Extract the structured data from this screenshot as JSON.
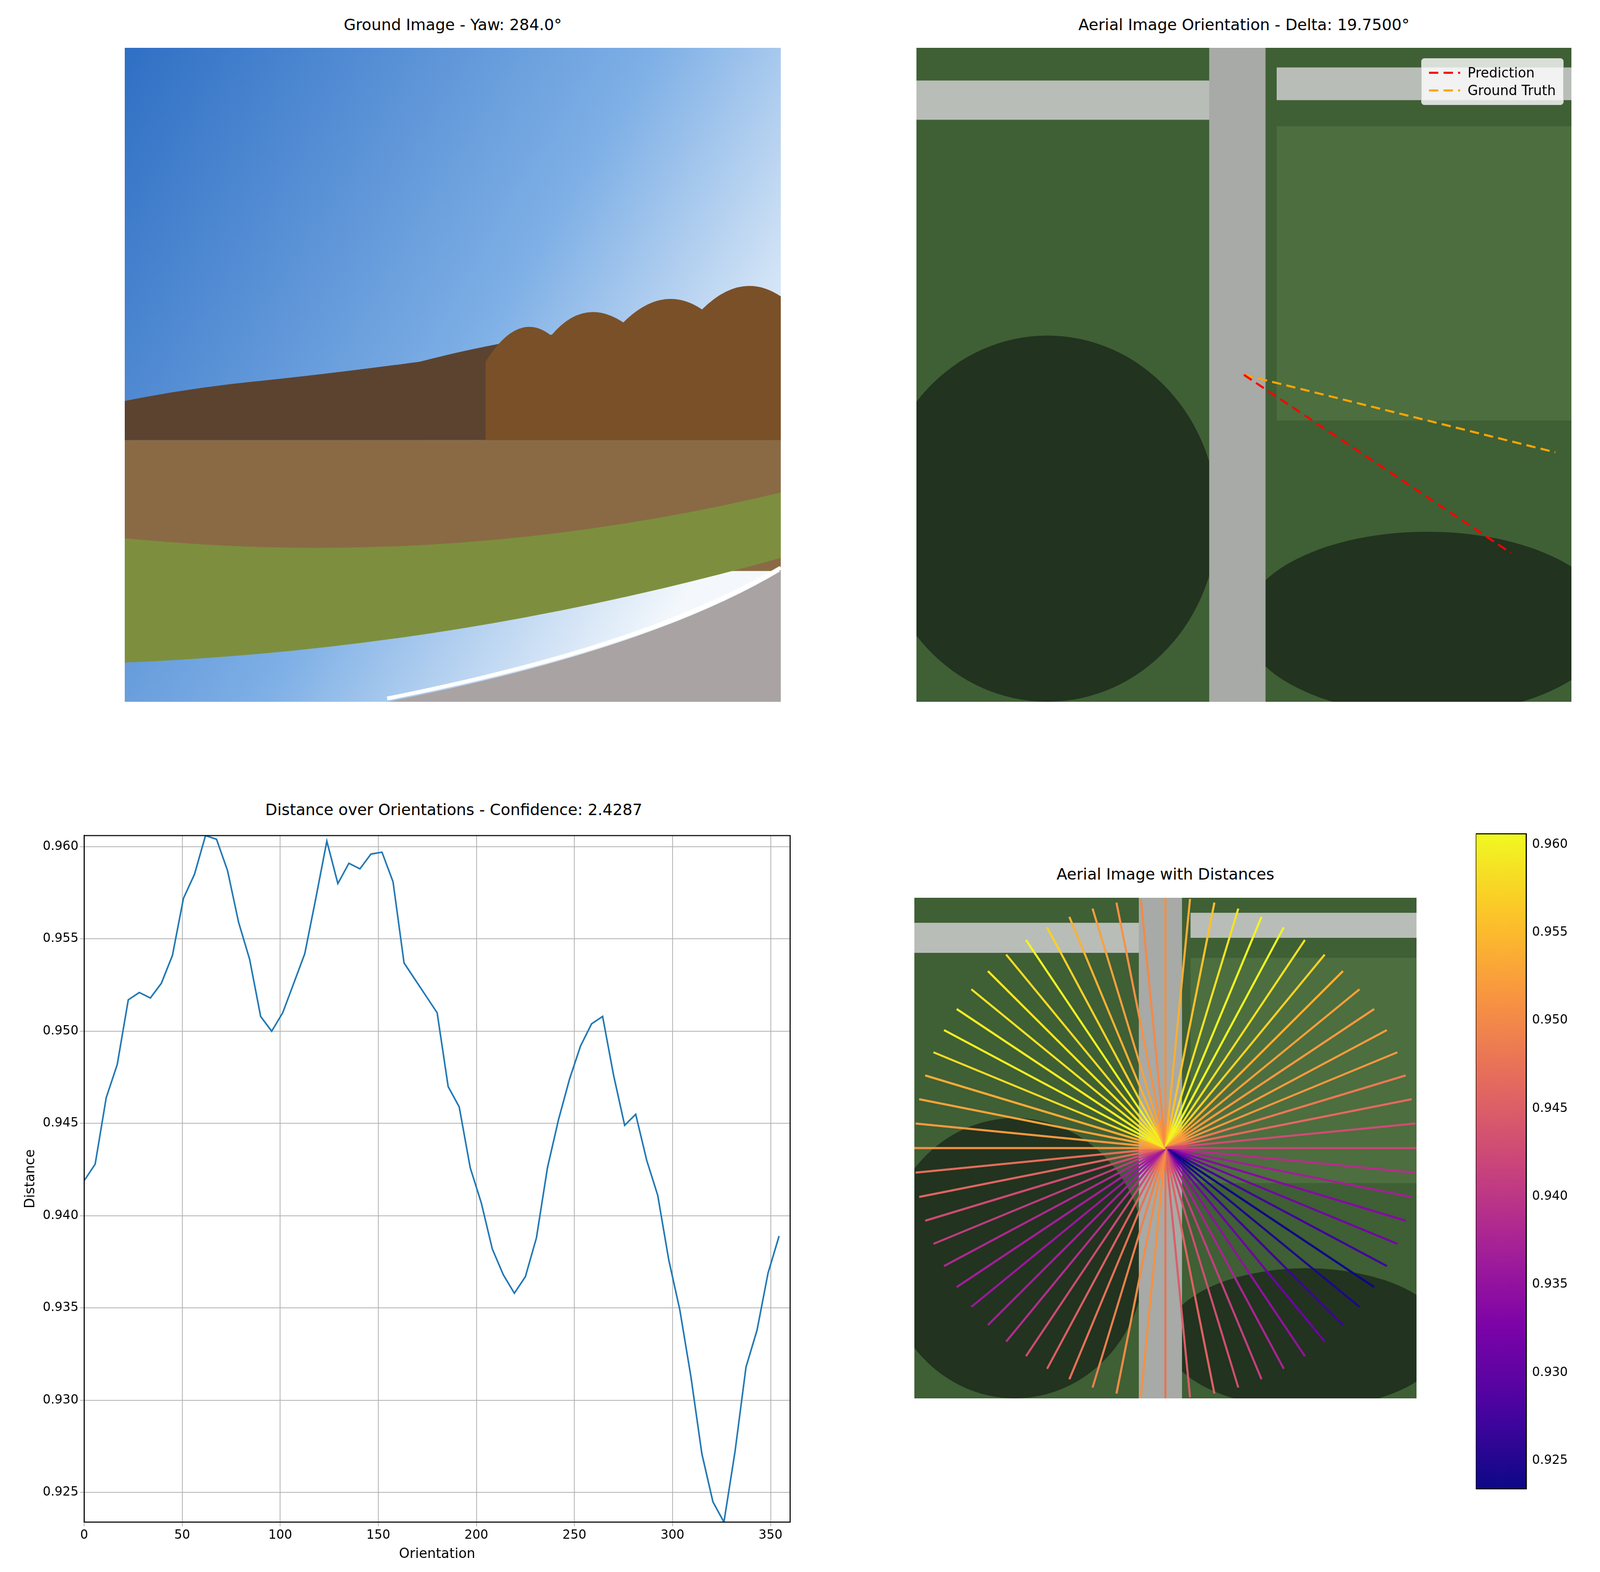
{
  "chart_data": [
    {
      "type": "image",
      "title": "Ground Image - Yaw: 284.0°"
    },
    {
      "type": "orientation",
      "title": "Aerial Image Orientation - Delta: 19.7500°",
      "legend": "upper right",
      "series": [
        {
          "name": "Prediction",
          "color": "#ff0000",
          "line_style": "dashed",
          "values": [
            326.25
          ]
        },
        {
          "name": "Ground Truth",
          "color": "#ffa500",
          "line_style": "dashed",
          "values": [
            346.0
          ]
        }
      ]
    },
    {
      "type": "line",
      "title": "Distance over Orientations - Confidence: 2.4287",
      "x_label": "Orientation",
      "y_label": "Distance",
      "color": "#1f77b4",
      "grid": true,
      "xlim": [
        0,
        360
      ],
      "xticks": [
        0,
        50,
        100,
        150,
        200,
        250,
        300,
        350
      ],
      "ylim": [
        0.9234,
        0.9606
      ],
      "yticks": [
        0.925,
        {
          "value": 0.93,
          "label": "0.930"
        },
        0.935,
        {
          "value": 0.94,
          "label": "0.940"
        },
        0.945,
        {
          "value": 0.95,
          "label": "0.950"
        },
        0.955,
        {
          "value": 0.96,
          "label": "0.960"
        }
      ],
      "x": [
        0,
        5.625,
        11.25,
        16.875,
        22.5,
        28.125,
        33.75,
        39.375,
        45,
        50.625,
        56.25,
        61.875,
        67.5,
        73.125,
        78.75,
        84.375,
        90,
        95.625,
        101.25,
        106.875,
        112.5,
        118.125,
        123.75,
        129.375,
        135,
        140.625,
        146.25,
        151.875,
        157.5,
        163.125,
        168.75,
        174.375,
        180,
        185.625,
        191.25,
        196.875,
        202.5,
        208.125,
        213.75,
        219.375,
        225,
        230.625,
        236.25,
        241.875,
        247.5,
        253.125,
        258.75,
        264.375,
        270,
        275.625,
        281.25,
        286.875,
        292.5,
        298.125,
        303.75,
        309.375,
        315,
        320.625,
        326.25,
        331.875,
        337.5,
        343.125,
        348.75,
        354.375
      ],
      "values": [
        0.9419,
        0.9428,
        0.9464,
        0.9482,
        0.9517,
        0.9521,
        0.9518,
        0.9526,
        0.9541,
        0.9572,
        0.9585,
        0.9606,
        0.9604,
        0.9587,
        0.9559,
        0.9539,
        0.9508,
        0.95,
        0.951,
        0.9526,
        0.9542,
        0.9572,
        0.9603,
        0.958,
        0.9591,
        0.9588,
        0.9596,
        0.9597,
        0.9581,
        0.9537,
        0.9528,
        0.9519,
        0.951,
        0.947,
        0.9459,
        0.9426,
        0.9407,
        0.9382,
        0.9368,
        0.9358,
        0.9367,
        0.9388,
        0.9426,
        0.9452,
        0.9474,
        0.9492,
        0.9504,
        0.9508,
        0.9476,
        0.9449,
        0.9455,
        0.943,
        0.9411,
        0.9376,
        0.9349,
        0.9313,
        0.9271,
        0.9245,
        0.9234,
        0.9272,
        0.9318,
        0.9338,
        0.9369,
        0.9389
      ]
    },
    {
      "type": "radial",
      "title": "Aerial Image with Distances",
      "colorbar": {
        "range": [
          0.9234,
          0.9606
        ],
        "ticks": [
          0.925,
          {
            "value": 0.93,
            "label": "0.930"
          },
          0.935,
          {
            "value": 0.94,
            "label": "0.940"
          },
          0.945,
          {
            "value": 0.95,
            "label": "0.950"
          },
          0.955,
          {
            "value": 0.96,
            "label": "0.960"
          }
        ]
      }
    }
  ]
}
